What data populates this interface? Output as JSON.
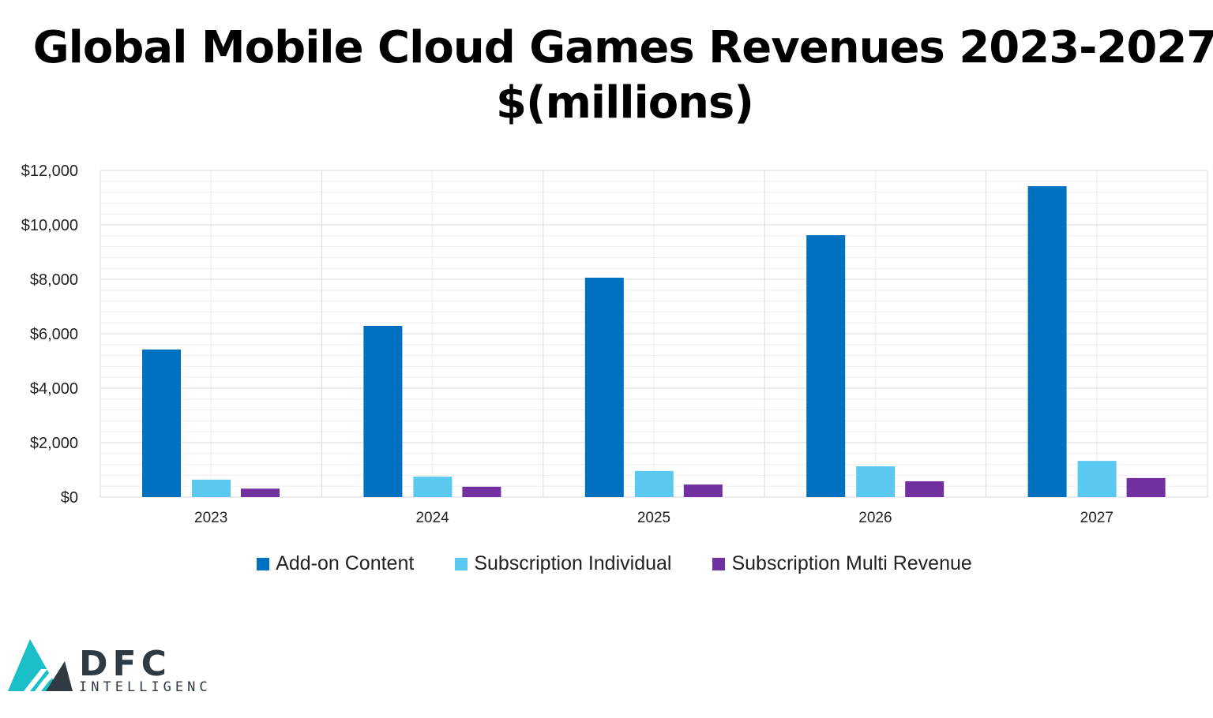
{
  "chart_data": {
    "type": "bar",
    "title": "Global Mobile Cloud Games Revenues 2023-2027",
    "subtitle": "$(millions)",
    "categories": [
      "2023",
      "2024",
      "2025",
      "2026",
      "2027"
    ],
    "series": [
      {
        "name": "Add-on Content",
        "color": "#0070C0",
        "values": [
          5420,
          6290,
          8060,
          9620,
          11420
        ]
      },
      {
        "name": "Subscription Individual",
        "color": "#5BC8F0",
        "values": [
          640,
          750,
          960,
          1130,
          1330
        ]
      },
      {
        "name": "Subscription Multi Revenue",
        "color": "#7030A0",
        "values": [
          310,
          380,
          460,
          580,
          700
        ]
      }
    ],
    "ylim": [
      0,
      12000
    ],
    "yticks": [
      "$0",
      "$2,000",
      "$4,000",
      "$6,000",
      "$8,000",
      "$10,000",
      "$12,000"
    ],
    "grid": true,
    "legend": "bottom"
  },
  "logo": {
    "main": "DFC",
    "sub": "INTELLIGENCE"
  }
}
